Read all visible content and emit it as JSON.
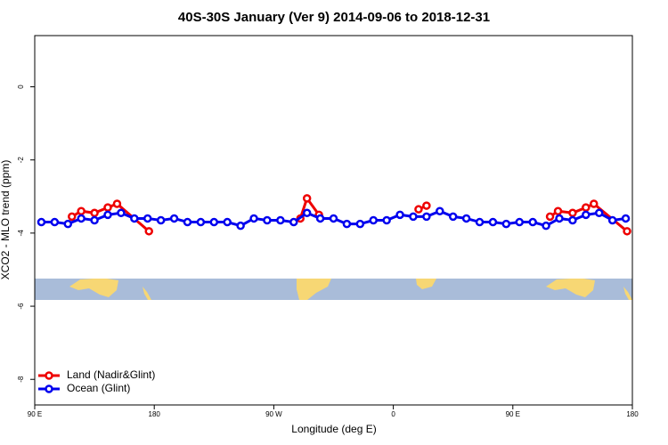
{
  "chart_data": {
    "type": "line",
    "title": "40S-30S January (Ver 9)   2014-09-06 to 2018-12-31",
    "x_label": "Longitude (deg E)",
    "y_label": "XCO2 - MLO trend (ppm)",
    "xlim": [
      90,
      540
    ],
    "ylim": [
      -8.7,
      1.4
    ],
    "xticks": [
      {
        "value": 90,
        "label": "90 E"
      },
      {
        "value": 180,
        "label": "180"
      },
      {
        "value": 270,
        "label": "90 W"
      },
      {
        "value": 360,
        "label": "0"
      },
      {
        "value": 450,
        "label": "90 E"
      },
      {
        "value": 540,
        "label": "180"
      }
    ],
    "yticks": [
      0,
      -2,
      -4,
      -6,
      -8
    ],
    "legend": "bottom-left",
    "series": [
      {
        "name": "Land (Nadir&Glint)",
        "color": "#ee0000",
        "x": [
          118,
          125,
          135,
          145,
          152,
          176,
          250,
          290,
          295,
          304,
          340,
          379,
          385,
          420,
          478,
          484,
          495,
          505,
          511,
          536
        ],
        "values": [
          -3.55,
          -3.4,
          -3.45,
          -3.3,
          -3.2,
          -3.95,
          null,
          -3.6,
          -3.05,
          -3.5,
          null,
          -3.35,
          -3.25,
          null,
          -3.55,
          -3.4,
          -3.45,
          -3.3,
          -3.2,
          -3.95
        ]
      },
      {
        "name": "Ocean (Glint)",
        "color": "#0000ee",
        "x": [
          95,
          105,
          115,
          125,
          135,
          145,
          155,
          165,
          175,
          185,
          195,
          205,
          215,
          225,
          235,
          245,
          255,
          265,
          275,
          285,
          295,
          305,
          315,
          325,
          335,
          345,
          355,
          365,
          375,
          385,
          395,
          405,
          415,
          425,
          435,
          445,
          455,
          465,
          475,
          485,
          495,
          505,
          515,
          525,
          535
        ],
        "values": [
          -3.7,
          -3.7,
          -3.75,
          -3.6,
          -3.65,
          -3.5,
          -3.45,
          -3.6,
          -3.6,
          -3.65,
          -3.6,
          -3.7,
          -3.7,
          -3.7,
          -3.7,
          -3.8,
          -3.6,
          -3.65,
          -3.65,
          -3.7,
          -3.45,
          -3.6,
          -3.6,
          -3.75,
          -3.75,
          -3.65,
          -3.65,
          -3.5,
          -3.55,
          -3.55,
          -3.4,
          -3.55,
          -3.6,
          -3.7,
          -3.7,
          -3.75,
          -3.7,
          -3.7,
          -3.8,
          -3.6,
          -3.65,
          -3.5,
          -3.45,
          -3.65,
          -3.6
        ]
      }
    ]
  }
}
